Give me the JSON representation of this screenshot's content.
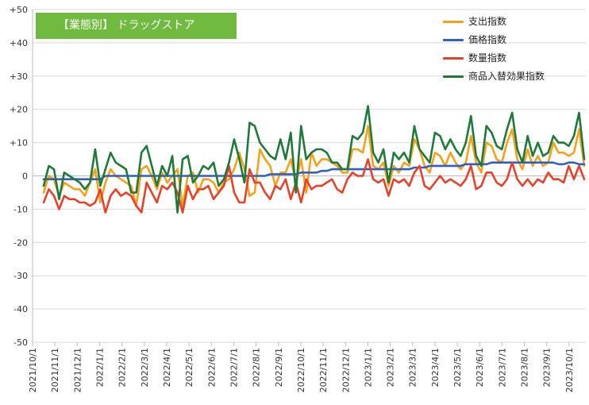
{
  "chart_data": {
    "type": "line",
    "title": "【業態別】 ドラッグストア",
    "title_color": "#6fba3f",
    "ylim": [
      -50,
      50
    ],
    "y_ticks": [
      50,
      40,
      30,
      20,
      10,
      0,
      -10,
      -20,
      -30,
      -40,
      -50
    ],
    "y_tick_labels": [
      "+50",
      "+40",
      "+30",
      "+20",
      "+10",
      "0",
      "-10",
      "-20",
      "-30",
      "-40",
      "-50"
    ],
    "x_tick_labels": [
      "2021/10/1",
      "2021/11/1",
      "2021/12/1",
      "2022/1/1",
      "2022/2/1",
      "2022/3/1",
      "2022/4/1",
      "2022/5/1",
      "2022/6/1",
      "2022/7/1",
      "2022/8/1",
      "2022/9/1",
      "2022/10/1",
      "2022/11/1",
      "2022/12/1",
      "2023/1/1",
      "2023/2/1",
      "2023/3/1",
      "2023/4/1",
      "2023/5/1",
      "2023/6/1",
      "2023/7/1",
      "2023/8/1",
      "2023/9/1",
      "2023/10/1"
    ],
    "grid": true,
    "legend_position": "top-right",
    "series": [
      {
        "name": "支出指数",
        "color": "#f5a11c",
        "values": [
          -5,
          0,
          -1,
          -6,
          -2,
          -3,
          -4,
          -4,
          -6,
          -2,
          2,
          -8,
          -2,
          2,
          0,
          -1,
          -2,
          -3,
          -9,
          2,
          3,
          0,
          -4,
          1,
          -2,
          0,
          2,
          -9,
          0,
          1,
          -5,
          -1,
          -1,
          -2,
          -5,
          -2,
          -1,
          2,
          7,
          2,
          -6,
          -5,
          8,
          5,
          3,
          -3,
          1,
          1,
          5,
          -2,
          5,
          -5,
          7,
          3,
          5,
          5,
          4,
          3,
          1,
          1,
          8,
          8,
          7,
          15,
          3,
          2,
          4,
          -3,
          3,
          1,
          4,
          3,
          11,
          8,
          3,
          1,
          7,
          6,
          3,
          7,
          4,
          2,
          4,
          12,
          4,
          1,
          10,
          9,
          5,
          4,
          10,
          14,
          5,
          2,
          8,
          3,
          6,
          3,
          4,
          10,
          7,
          7,
          6,
          7,
          14,
          3
        ]
      },
      {
        "name": "価格指数",
        "color": "#2f5fc3",
        "values": [
          -1,
          -1,
          -1,
          -1,
          -1,
          -1,
          -1,
          -1,
          -1,
          -1,
          -1,
          -1,
          0,
          0,
          0,
          0,
          0,
          0,
          0,
          0,
          0,
          0,
          0,
          0,
          0,
          0,
          0,
          0,
          0,
          0,
          0,
          0,
          0,
          0,
          0,
          0,
          0,
          0,
          0,
          0,
          0,
          0,
          0,
          0,
          0.5,
          0.5,
          0.5,
          0.5,
          0.5,
          0.5,
          1,
          1,
          1,
          1,
          1.5,
          1.5,
          2,
          2,
          2,
          2,
          2,
          2,
          2,
          2,
          2,
          2,
          2,
          2,
          2,
          2,
          2,
          2,
          2.5,
          2.5,
          2.5,
          3,
          3,
          3,
          3,
          3,
          3,
          3,
          3.5,
          3.5,
          3.5,
          3.5,
          3.5,
          4,
          4,
          4,
          4,
          4,
          4,
          4,
          4,
          4,
          4,
          4,
          4,
          4,
          3.5,
          3.5,
          4,
          4,
          3.5,
          3.5
        ]
      },
      {
        "name": "数量指数",
        "color": "#e8412a",
        "values": [
          -8,
          -4,
          -6,
          -10,
          -6,
          -7,
          -7,
          -8,
          -8,
          -9,
          -8,
          -4,
          -11,
          -6,
          -4,
          -6,
          -5,
          -6,
          -9,
          -11,
          -2,
          -5,
          -8,
          -3,
          -4,
          -2,
          -5,
          -11,
          -3,
          -7,
          -4,
          -4,
          -3,
          -7,
          -5,
          -3,
          3,
          -5,
          -8,
          -8,
          2,
          -2,
          -2,
          -5,
          -7,
          -3,
          -4,
          -1,
          -7,
          -2,
          -8,
          -1,
          -4,
          -3,
          -3,
          -2,
          -1,
          -4,
          -5,
          -1,
          1,
          0,
          0,
          5,
          -1,
          -2,
          -1,
          -6,
          -1,
          -2,
          -1,
          -3,
          1,
          3,
          -3,
          -4,
          -2,
          0,
          -2,
          -1,
          -2,
          -3,
          -1,
          3,
          -4,
          -3,
          1,
          1,
          -2,
          -3,
          -1,
          4,
          -1,
          -3,
          -1,
          -3,
          -1,
          -2,
          1,
          -1,
          -1,
          -2,
          3,
          -1,
          3,
          -1
        ]
      },
      {
        "name": "商品入替効果指数",
        "color": "#1f7a3a",
        "values": [
          -3,
          3,
          2,
          -7,
          1,
          0,
          -1,
          -2,
          -4,
          -2,
          8,
          -3,
          2,
          7,
          4,
          3,
          2,
          -5,
          -5,
          7,
          9,
          3,
          -3,
          3,
          0,
          6,
          -11,
          5,
          6,
          -2,
          0,
          3,
          2,
          4,
          -3,
          -1,
          4,
          11,
          5,
          -2,
          16,
          15,
          10,
          8,
          6,
          5,
          11,
          5,
          13,
          -5,
          15,
          5,
          7,
          8,
          8,
          7,
          4,
          4,
          2,
          2,
          12,
          11,
          13,
          21,
          7,
          4,
          8,
          -2,
          7,
          5,
          7,
          4,
          15,
          8,
          6,
          4,
          13,
          12,
          8,
          11,
          8,
          6,
          10,
          18,
          6,
          3,
          15,
          13,
          9,
          8,
          14,
          19,
          8,
          4,
          12,
          6,
          10,
          6,
          7,
          12,
          10,
          10,
          9,
          12,
          19,
          5
        ]
      }
    ]
  }
}
